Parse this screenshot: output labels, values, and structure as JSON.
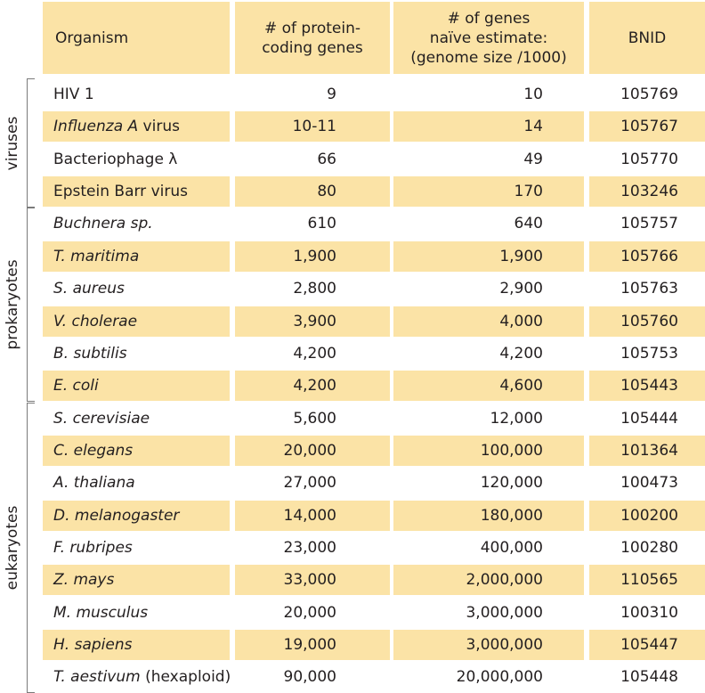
{
  "table": {
    "headers": {
      "organism": "Organism",
      "protein_line1": "# of protein-",
      "protein_line2": "coding genes",
      "naive_line1": "# of genes",
      "naive_line2": "naïve estimate:",
      "naive_line3": "(genome size /1000)",
      "bnid": "BNID"
    },
    "groups": [
      {
        "label": "viruses",
        "first_row": 0,
        "last_row": 3
      },
      {
        "label": "prokaryotes",
        "first_row": 4,
        "last_row": 9
      },
      {
        "label": "eukaryotes",
        "first_row": 10,
        "last_row": 18
      }
    ],
    "rows": [
      {
        "organism": "HIV 1",
        "organism_suffix": "",
        "italic": false,
        "protein_coding_genes": "9",
        "naive_estimate": "10",
        "bnid": "105769"
      },
      {
        "organism": "Influenza A",
        "organism_suffix": " virus",
        "italic": true,
        "protein_coding_genes": "10-11",
        "naive_estimate": "14",
        "bnid": "105767"
      },
      {
        "organism": "Bacteriophage λ",
        "organism_suffix": "",
        "italic": false,
        "protein_coding_genes": "66",
        "naive_estimate": "49",
        "bnid": "105770"
      },
      {
        "organism": "Epstein Barr virus",
        "organism_suffix": "",
        "italic": false,
        "protein_coding_genes": "80",
        "naive_estimate": "170",
        "bnid": "103246"
      },
      {
        "organism": "Buchnera sp.",
        "organism_suffix": "",
        "italic": true,
        "protein_coding_genes": "610",
        "naive_estimate": "640",
        "bnid": "105757"
      },
      {
        "organism": "T. maritima",
        "organism_suffix": "",
        "italic": true,
        "protein_coding_genes": "1,900",
        "naive_estimate": "1,900",
        "bnid": "105766"
      },
      {
        "organism": "S. aureus",
        "organism_suffix": "",
        "italic": true,
        "protein_coding_genes": "2,800",
        "naive_estimate": "2,900",
        "bnid": "105763"
      },
      {
        "organism": "V. cholerae",
        "organism_suffix": "",
        "italic": true,
        "protein_coding_genes": "3,900",
        "naive_estimate": "4,000",
        "bnid": "105760"
      },
      {
        "organism": "B. subtilis",
        "organism_suffix": "",
        "italic": true,
        "protein_coding_genes": "4,200",
        "naive_estimate": "4,200",
        "bnid": "105753"
      },
      {
        "organism": "E. coli",
        "organism_suffix": "",
        "italic": true,
        "protein_coding_genes": "4,200",
        "naive_estimate": "4,600",
        "bnid": "105443"
      },
      {
        "organism": "S. cerevisiae",
        "organism_suffix": "",
        "italic": true,
        "protein_coding_genes": "5,600",
        "naive_estimate": "12,000",
        "bnid": "105444"
      },
      {
        "organism": "C. elegans",
        "organism_suffix": "",
        "italic": true,
        "protein_coding_genes": "20,000",
        "naive_estimate": "100,000",
        "bnid": "101364"
      },
      {
        "organism": "A. thaliana",
        "organism_suffix": "",
        "italic": true,
        "protein_coding_genes": "27,000",
        "naive_estimate": "120,000",
        "bnid": "100473"
      },
      {
        "organism": "D. melanogaster",
        "organism_suffix": "",
        "italic": true,
        "protein_coding_genes": "14,000",
        "naive_estimate": "180,000",
        "bnid": "100200"
      },
      {
        "organism": "F. rubripes",
        "organism_suffix": "",
        "italic": true,
        "protein_coding_genes": "23,000",
        "naive_estimate": "400,000",
        "bnid": "100280"
      },
      {
        "organism": "Z. mays",
        "organism_suffix": "",
        "italic": true,
        "protein_coding_genes": "33,000",
        "naive_estimate": "2,000,000",
        "bnid": "110565"
      },
      {
        "organism": "M. musculus",
        "organism_suffix": "",
        "italic": true,
        "protein_coding_genes": "20,000",
        "naive_estimate": "3,000,000",
        "bnid": "100310"
      },
      {
        "organism": "H. sapiens",
        "organism_suffix": "",
        "italic": true,
        "protein_coding_genes": "19,000",
        "naive_estimate": "3,000,000",
        "bnid": "105447"
      },
      {
        "organism": "T. aestivum",
        "organism_suffix": " (hexaploid)",
        "italic": true,
        "protein_coding_genes": "90,000",
        "naive_estimate": "20,000,000",
        "bnid": "105448"
      }
    ]
  },
  "colors": {
    "shade": "#fbe3a6",
    "text": "#231f20",
    "bracket": "#7a7a7a"
  }
}
